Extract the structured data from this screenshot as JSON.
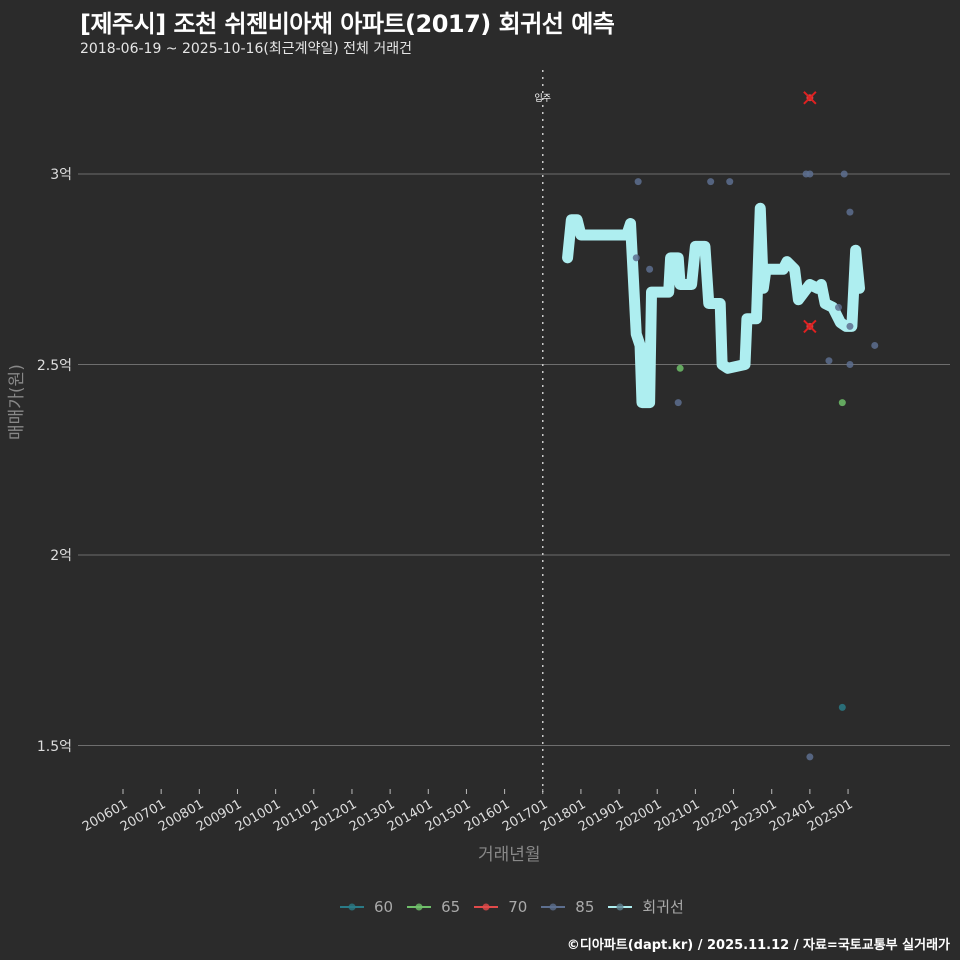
{
  "header": {
    "title": "[제주시] 조천 쉬젠비아채 아파트(2017) 회귀선 예측",
    "subtitle": "2018-06-19 ~ 2025-10-16(최근계약일) 전체 거래건"
  },
  "footer": {
    "credit": "©디아파트(dapt.kr) / 2025.11.12 / 자료=국토교통부 실거래가"
  },
  "annotation": {
    "label": "입주",
    "x": "201701"
  },
  "colors": {
    "background": "#2b2b2b",
    "grid": "#6e6e6e",
    "s60": "#2a7a86",
    "s65": "#6fbf6a",
    "s70": "#e04a4a",
    "s85": "#5d6f8f",
    "regression": "#aeeef0"
  },
  "chart_data": {
    "type": "scatter",
    "title": "[제주시] 조천 쉬젠비아채 아파트(2017) 회귀선 예측",
    "subtitle": "2018-06-19 ~ 2025-10-16(최근계약일) 전체 거래건",
    "xlabel": "거래년월",
    "ylabel": "매매가(원)",
    "x_ticks": [
      "200601",
      "200701",
      "200801",
      "200901",
      "201001",
      "201101",
      "201201",
      "201301",
      "201401",
      "201501",
      "201601",
      "201701",
      "201801",
      "201901",
      "202001",
      "202101",
      "202201",
      "202301",
      "202401",
      "202501"
    ],
    "y_ticks": [
      {
        "value": 1.5,
        "label": "1.5억"
      },
      {
        "value": 2.0,
        "label": "2억"
      },
      {
        "value": 2.5,
        "label": "2.5억"
      },
      {
        "value": 3.0,
        "label": "3억"
      }
    ],
    "ylim": [
      1.4,
      3.27
    ],
    "grid": true,
    "legend_position": "bottom",
    "legend": [
      "60",
      "65",
      "70",
      "85",
      "회귀선"
    ],
    "vline": {
      "x": 2017.0,
      "label": "입주"
    },
    "series": [
      {
        "name": "60",
        "points": [
          [
            2024.85,
            1.6
          ]
        ]
      },
      {
        "name": "65",
        "points": [
          [
            2020.6,
            2.49
          ],
          [
            2024.85,
            2.4
          ]
        ]
      },
      {
        "name": "70",
        "points": [
          [
            2024.0,
            3.2,
            "cancelled"
          ],
          [
            2024.0,
            2.6,
            "cancelled"
          ]
        ]
      },
      {
        "name": "85",
        "points": [
          [
            2019.5,
            2.98
          ],
          [
            2019.45,
            2.78
          ],
          [
            2019.8,
            2.75
          ],
          [
            2020.55,
            2.4
          ],
          [
            2021.4,
            2.98
          ],
          [
            2021.9,
            2.98
          ],
          [
            2023.9,
            3.0
          ],
          [
            2024.0,
            3.0
          ],
          [
            2024.9,
            3.0
          ],
          [
            2024.5,
            2.51
          ],
          [
            2024.75,
            2.65
          ],
          [
            2025.05,
            2.9
          ],
          [
            2025.05,
            2.6
          ],
          [
            2025.05,
            2.5
          ],
          [
            2025.7,
            2.55
          ],
          [
            2024.0,
            1.47
          ]
        ]
      },
      {
        "name": "회귀선",
        "points": [
          [
            2017.65,
            2.78
          ],
          [
            2017.75,
            2.88
          ],
          [
            2017.9,
            2.88
          ],
          [
            2018.0,
            2.84
          ],
          [
            2019.2,
            2.84
          ],
          [
            2019.3,
            2.87
          ],
          [
            2019.45,
            2.58
          ],
          [
            2019.55,
            2.55
          ],
          [
            2019.6,
            2.4
          ],
          [
            2019.8,
            2.4
          ],
          [
            2019.85,
            2.69
          ],
          [
            2020.3,
            2.69
          ],
          [
            2020.35,
            2.78
          ],
          [
            2020.55,
            2.78
          ],
          [
            2020.6,
            2.71
          ],
          [
            2020.9,
            2.71
          ],
          [
            2021.0,
            2.81
          ],
          [
            2021.25,
            2.81
          ],
          [
            2021.35,
            2.66
          ],
          [
            2021.65,
            2.66
          ],
          [
            2021.7,
            2.5
          ],
          [
            2021.85,
            2.49
          ],
          [
            2022.3,
            2.5
          ],
          [
            2022.35,
            2.62
          ],
          [
            2022.6,
            2.62
          ],
          [
            2022.7,
            2.91
          ],
          [
            2022.78,
            2.7
          ],
          [
            2022.85,
            2.75
          ],
          [
            2023.3,
            2.75
          ],
          [
            2023.4,
            2.77
          ],
          [
            2023.6,
            2.75
          ],
          [
            2023.7,
            2.67
          ],
          [
            2024.0,
            2.71
          ],
          [
            2024.2,
            2.7
          ],
          [
            2024.3,
            2.71
          ],
          [
            2024.4,
            2.66
          ],
          [
            2024.6,
            2.65
          ],
          [
            2024.8,
            2.61
          ],
          [
            2024.95,
            2.6
          ],
          [
            2025.1,
            2.6
          ],
          [
            2025.2,
            2.8
          ],
          [
            2025.3,
            2.7
          ]
        ]
      }
    ]
  }
}
